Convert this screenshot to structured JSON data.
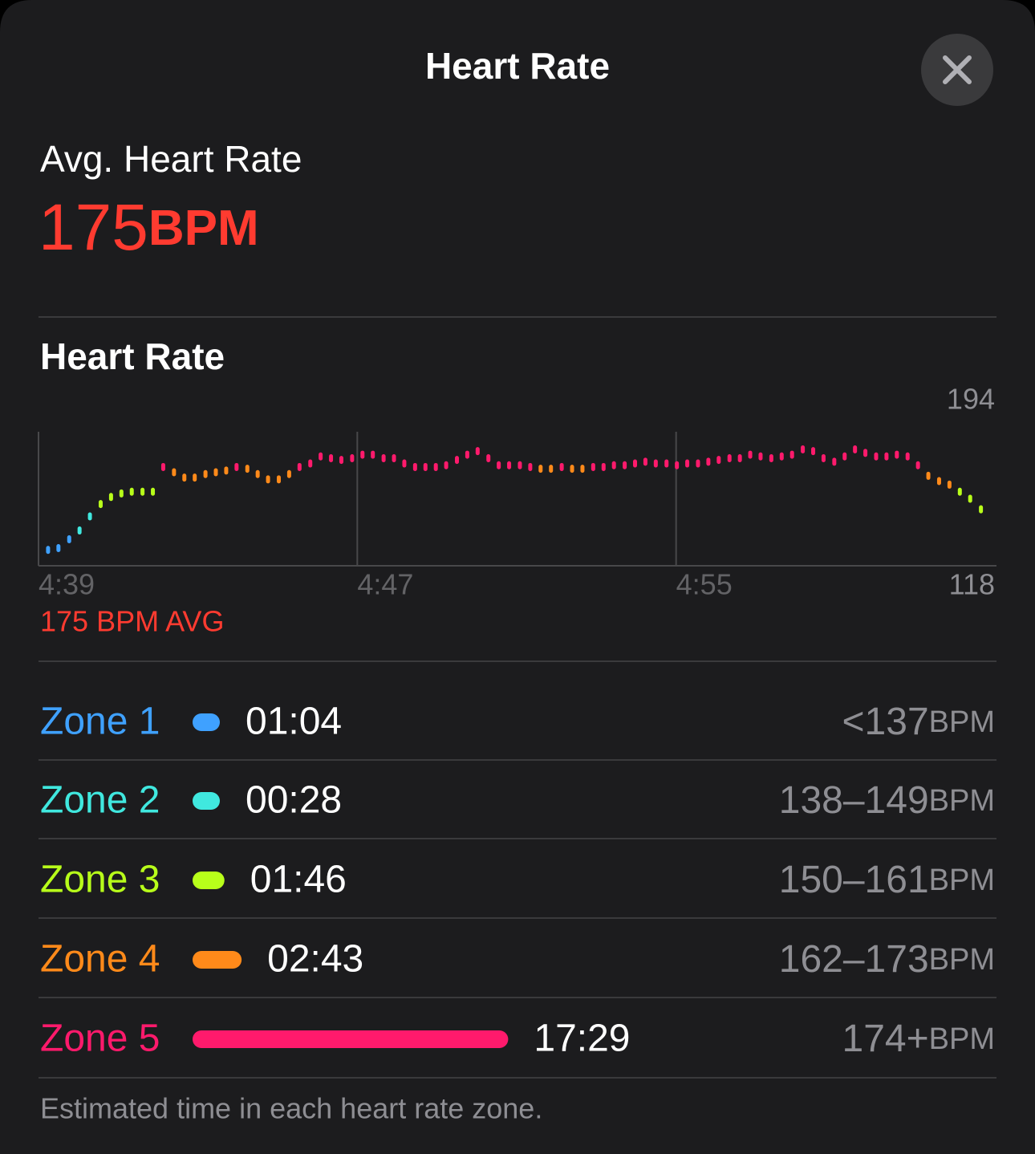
{
  "header": {
    "title": "Heart Rate"
  },
  "summary": {
    "label": "Avg. Heart Rate",
    "value": 175,
    "unit": "BPM"
  },
  "unit": "BPM",
  "chart_data": {
    "type": "scatter",
    "title": "Heart Rate",
    "avg_label": "175 BPM AVG",
    "x": [
      279.24,
      279.5,
      279.77,
      280.03,
      280.29,
      280.56,
      280.82,
      281.08,
      281.34,
      281.61,
      281.87,
      282.13,
      282.4,
      282.66,
      282.92,
      283.19,
      283.45,
      283.71,
      283.97,
      284.24,
      284.5,
      284.76,
      285.03,
      285.29,
      285.55,
      285.82,
      286.08,
      286.34,
      286.6,
      286.87,
      287.13,
      287.39,
      287.66,
      287.92,
      288.18,
      288.45,
      288.71,
      288.97,
      289.23,
      289.5,
      289.76,
      290.02,
      290.29,
      290.55,
      290.81,
      291.08,
      291.34,
      291.6,
      291.86,
      292.13,
      292.39,
      292.65,
      292.92,
      293.18,
      293.44,
      293.71,
      293.97,
      294.23,
      294.49,
      294.76,
      295.02,
      295.28,
      295.55,
      295.81,
      296.07,
      296.34,
      296.6,
      296.86,
      297.12,
      297.39,
      297.65,
      297.91,
      298.18,
      298.44,
      298.7,
      298.97,
      299.23,
      299.49,
      299.75,
      300.02,
      300.28,
      300.54,
      300.81,
      301.07,
      301.33,
      301.6,
      301.86,
      302.12,
      302.38,
      302.65
    ],
    "values": [
      127,
      128,
      133,
      138,
      146,
      153,
      157,
      159,
      160,
      160,
      160,
      174,
      171,
      168,
      168,
      170,
      171,
      172,
      174,
      173,
      170,
      167,
      167,
      170,
      174,
      176,
      180,
      179,
      178,
      179,
      181,
      181,
      179,
      179,
      176,
      174,
      174,
      174,
      175,
      178,
      181,
      183,
      179,
      175,
      175,
      175,
      174,
      173,
      173,
      174,
      173,
      173,
      174,
      174,
      175,
      175,
      176,
      177,
      176,
      176,
      175,
      176,
      176,
      177,
      178,
      179,
      179,
      181,
      180,
      179,
      180,
      181,
      184,
      183,
      179,
      177,
      180,
      184,
      182,
      180,
      180,
      181,
      180,
      175,
      169,
      166,
      164,
      160,
      156,
      150
    ],
    "xlim": [
      279,
      303
    ],
    "xticks": [
      {
        "value": 279,
        "label": "4:39"
      },
      {
        "value": 287,
        "label": "4:47"
      },
      {
        "value": 295,
        "label": "4:55"
      }
    ],
    "ylim": [
      118,
      194
    ],
    "yticks": [
      194,
      118
    ],
    "grid": true
  },
  "zones": [
    {
      "name": "Zone 1",
      "color": "#3fa1ff",
      "duration": 64,
      "duration_label": "01:04",
      "range": {
        "high": 137,
        "label": "<137"
      }
    },
    {
      "name": "Zone 2",
      "color": "#40e8df",
      "duration": 28,
      "duration_label": "00:28",
      "range": {
        "low": 138,
        "high": 149,
        "label": "138–149"
      }
    },
    {
      "name": "Zone 3",
      "color": "#b8ff1a",
      "duration": 106,
      "duration_label": "01:46",
      "range": {
        "low": 150,
        "high": 161,
        "label": "150–161"
      }
    },
    {
      "name": "Zone 4",
      "color": "#ff8a1a",
      "duration": 163,
      "duration_label": "02:43",
      "range": {
        "low": 162,
        "high": 173,
        "label": "162–173"
      }
    },
    {
      "name": "Zone 5",
      "color": "#ff1a6c",
      "duration": 1049,
      "duration_label": "17:29",
      "range": {
        "low": 174,
        "label": "174+"
      }
    }
  ],
  "footer": "Estimated time in each heart rate zone."
}
